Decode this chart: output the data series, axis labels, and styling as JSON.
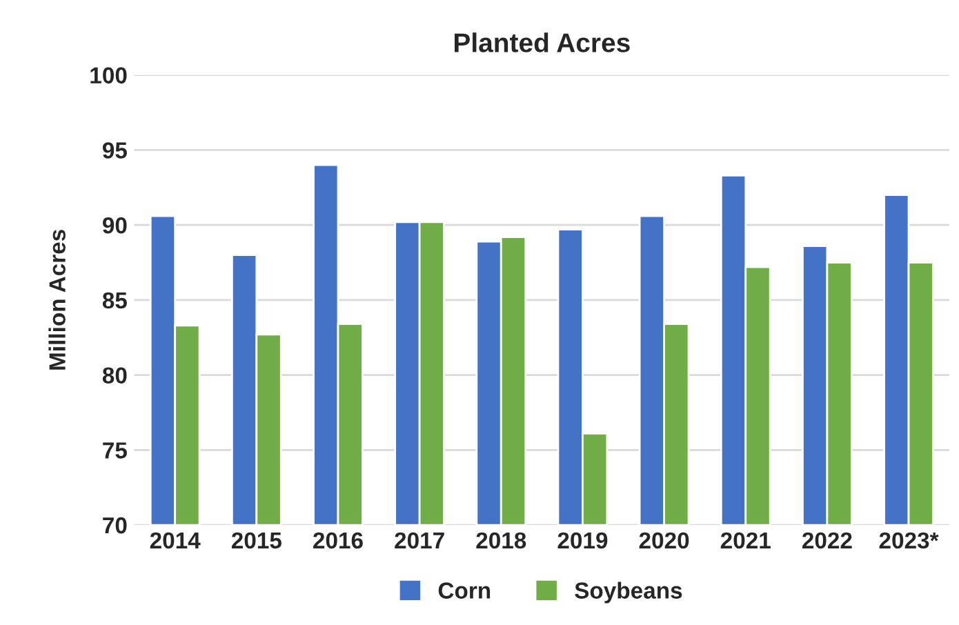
{
  "chart_data": {
    "type": "bar",
    "title": "Planted Acres",
    "ylabel": "Million Acres",
    "categories": [
      "2014",
      "2015",
      "2016",
      "2017",
      "2018",
      "2019",
      "2020",
      "2021",
      "2022",
      "2023*"
    ],
    "series": [
      {
        "name": "Corn",
        "color": "#4472c4",
        "values": [
          90.6,
          88.0,
          94.0,
          90.2,
          88.9,
          89.7,
          90.6,
          93.3,
          88.6,
          92.0
        ]
      },
      {
        "name": "Soybeans",
        "color": "#70ad47",
        "values": [
          83.3,
          82.7,
          83.4,
          90.2,
          89.2,
          76.1,
          83.4,
          87.2,
          87.5,
          87.5
        ]
      }
    ],
    "ylim": [
      70,
      100
    ],
    "yticks": [
      70,
      75,
      80,
      85,
      90,
      95,
      100
    ],
    "grid": "y",
    "legend": "bottom"
  }
}
